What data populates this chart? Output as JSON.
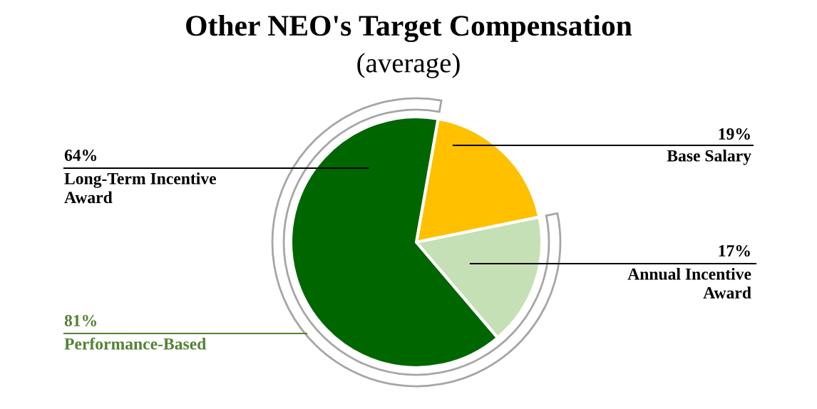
{
  "chart_data": {
    "type": "pie",
    "title": "Other NEO's Target Compensation",
    "subtitle": "(average)",
    "categories": [
      "Base Salary",
      "Annual Incentive\nAward",
      "Long-Term Incentive\nAward"
    ],
    "values": [
      19,
      17,
      64
    ],
    "colors": [
      "#ffc000",
      "#c5e0b4",
      "#006600"
    ],
    "value_labels": [
      "19%",
      "17%",
      "64%"
    ],
    "annotations": [
      "81%\nPerformance-Based"
    ],
    "legend": false
  }
}
